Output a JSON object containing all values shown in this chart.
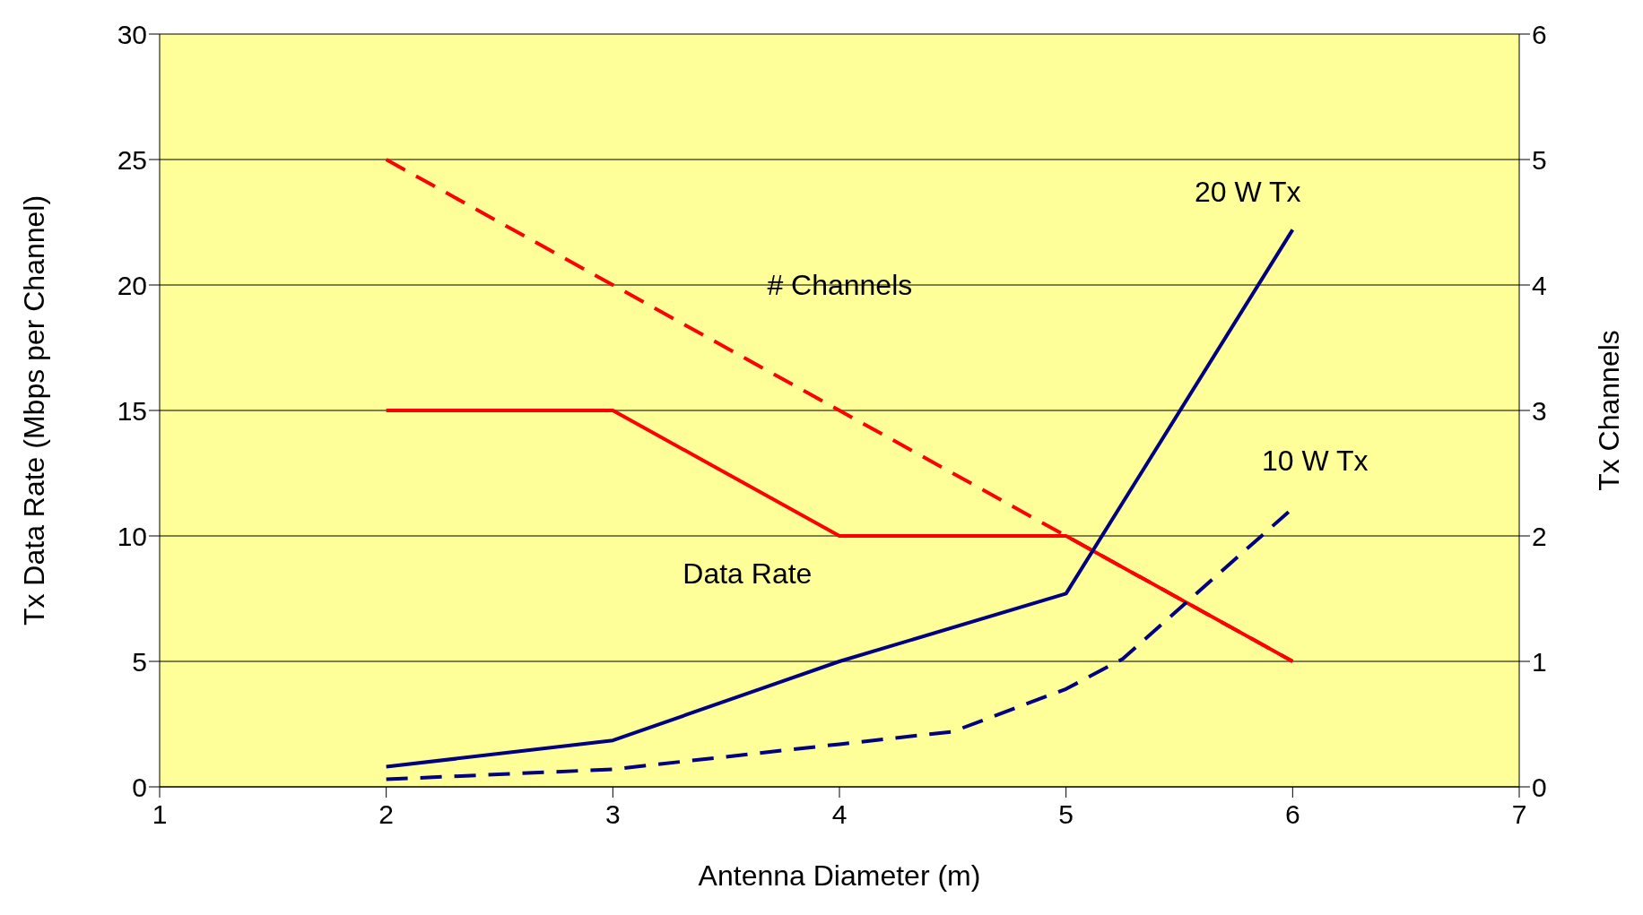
{
  "chart_data": {
    "type": "line",
    "xlabel": "Antenna Diameter (m)",
    "ylabel": "Tx Data Rate (Mbps per Channel)",
    "y2label": "Tx Channels",
    "xlim": [
      1,
      7
    ],
    "xticks": [
      1,
      2,
      3,
      4,
      5,
      6,
      7
    ],
    "ylim": [
      0,
      30
    ],
    "yticks": [
      0,
      5,
      10,
      15,
      20,
      25,
      30
    ],
    "y2lim": [
      0,
      6
    ],
    "y2ticks": [
      0,
      1,
      2,
      3,
      4,
      5,
      6
    ],
    "grid": "y",
    "legend": false,
    "marker": "none",
    "series": [
      {
        "name": "Data Rate",
        "color": "#ff0000",
        "line_style": "solid",
        "x": [
          2,
          3,
          4,
          5,
          6
        ],
        "values": [
          15,
          15,
          10,
          10,
          5
        ]
      },
      {
        "name": "# Channels",
        "color": "#ff0000",
        "line_style": "dashed",
        "axis": "y2",
        "x": [
          2,
          3,
          4,
          5,
          6
        ],
        "values": [
          5,
          4,
          3,
          2,
          1
        ]
      },
      {
        "name": "20 W Tx",
        "color": "#000080",
        "line_style": "solid",
        "x": [
          2,
          3,
          4,
          5,
          6
        ],
        "values": [
          0.8,
          1.85,
          5,
          7.7,
          22.2
        ]
      },
      {
        "name": "10 W Tx",
        "color": "#000080",
        "line_style": "dashed",
        "x": [
          2,
          3,
          4,
          4.5,
          5,
          5.25,
          6
        ],
        "values": [
          0.3,
          0.7,
          1.7,
          2.2,
          3.9,
          5.1,
          11.1
        ]
      }
    ]
  }
}
